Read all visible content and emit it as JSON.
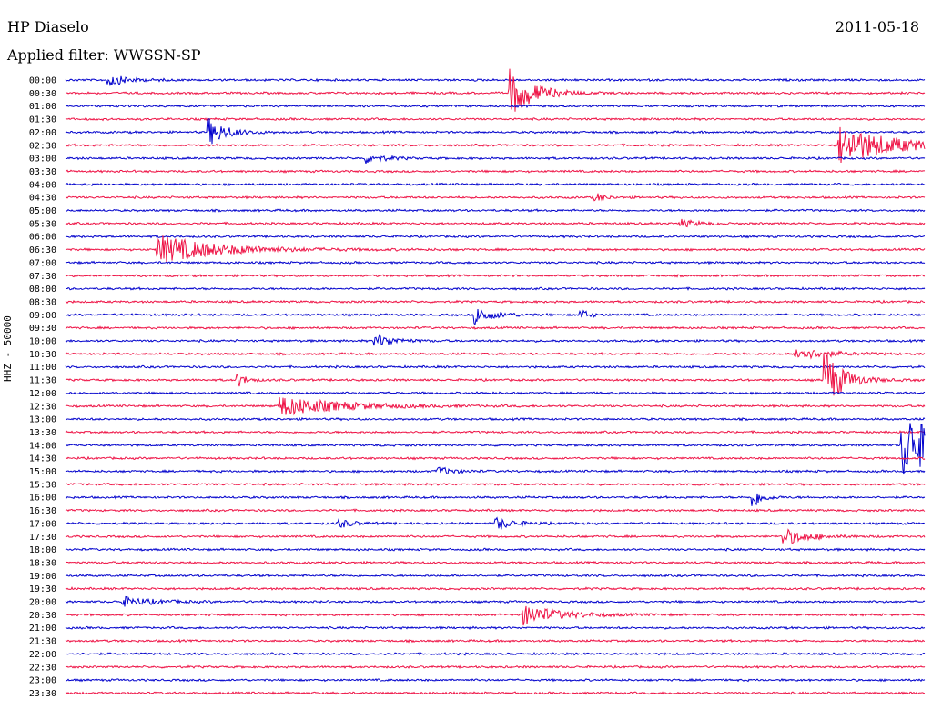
{
  "header": {
    "station": "HP Diaselo",
    "date": "2011-05-18",
    "filter": "Applied filter: WWSSN-SP"
  },
  "colors": {
    "even_trace": "#0000cc",
    "odd_trace": "#ee1144"
  },
  "chart_data": {
    "type": "line",
    "title": "HP Diaselo",
    "subtitle": "Applied filter: WWSSN-SP",
    "ylabel": "HHZ - 50000",
    "row_labels": [
      "00:00",
      "00:30",
      "01:00",
      "01:30",
      "02:00",
      "02:30",
      "03:00",
      "03:30",
      "04:00",
      "04:30",
      "05:00",
      "05:30",
      "06:00",
      "06:30",
      "07:00",
      "07:30",
      "08:00",
      "08:30",
      "09:00",
      "09:30",
      "10:00",
      "10:30",
      "11:00",
      "11:30",
      "12:00",
      "12:30",
      "13:00",
      "13:30",
      "14:00",
      "14:30",
      "15:00",
      "15:30",
      "16:00",
      "16:30",
      "17:00",
      "17:30",
      "18:00",
      "18:30",
      "19:00",
      "19:30",
      "20:00",
      "20:30",
      "21:00",
      "21:30",
      "22:00",
      "22:30",
      "23:00",
      "23:30"
    ],
    "row_minutes": 30,
    "series_colors": [
      "#0000cc",
      "#ee1144"
    ],
    "events": [
      {
        "row": "00:00",
        "minute": 1.5,
        "amplitude": 7,
        "duration": 0.6
      },
      {
        "row": "00:30",
        "minute": 15.5,
        "amplitude": 26,
        "duration": 0.8
      },
      {
        "row": "02:00",
        "minute": 5.0,
        "amplitude": 15,
        "duration": 0.6
      },
      {
        "row": "02:30",
        "minute": 27.0,
        "amplitude": 22,
        "duration": 1.8
      },
      {
        "row": "03:00",
        "minute": 10.5,
        "amplitude": 5,
        "duration": 0.6
      },
      {
        "row": "04:30",
        "minute": 18.5,
        "amplitude": 5,
        "duration": 0.3
      },
      {
        "row": "05:30",
        "minute": 21.5,
        "amplitude": 4,
        "duration": 0.6
      },
      {
        "row": "06:30",
        "minute": 3.2,
        "amplitude": 16,
        "duration": 2.0
      },
      {
        "row": "09:00",
        "minute": 14.3,
        "amplitude": 10,
        "duration": 0.6
      },
      {
        "row": "09:00",
        "minute": 18.0,
        "amplitude": 6,
        "duration": 0.3
      },
      {
        "row": "10:00",
        "minute": 10.8,
        "amplitude": 8,
        "duration": 0.6
      },
      {
        "row": "10:30",
        "minute": 25.5,
        "amplitude": 7,
        "duration": 1.0
      },
      {
        "row": "11:30",
        "minute": 26.5,
        "amplitude": 34,
        "duration": 0.6
      },
      {
        "row": "11:30",
        "minute": 6.0,
        "amplitude": 8,
        "duration": 0.3
      },
      {
        "row": "12:30",
        "minute": 7.5,
        "amplitude": 11,
        "duration": 2.0
      },
      {
        "row": "14:00",
        "minute": 29.2,
        "amplitude": 40,
        "duration": 1.2
      },
      {
        "row": "15:00",
        "minute": 13.0,
        "amplitude": 5,
        "duration": 0.5
      },
      {
        "row": "16:00",
        "minute": 24.0,
        "amplitude": 12,
        "duration": 0.3
      },
      {
        "row": "17:00",
        "minute": 9.5,
        "amplitude": 5,
        "duration": 0.5
      },
      {
        "row": "17:00",
        "minute": 15.0,
        "amplitude": 7,
        "duration": 0.6
      },
      {
        "row": "17:30",
        "minute": 25.0,
        "amplitude": 10,
        "duration": 0.8
      },
      {
        "row": "20:00",
        "minute": 2.0,
        "amplitude": 5,
        "duration": 1.0
      },
      {
        "row": "20:30",
        "minute": 16.0,
        "amplitude": 11,
        "duration": 1.2
      }
    ],
    "grid": false,
    "legend": "none"
  }
}
